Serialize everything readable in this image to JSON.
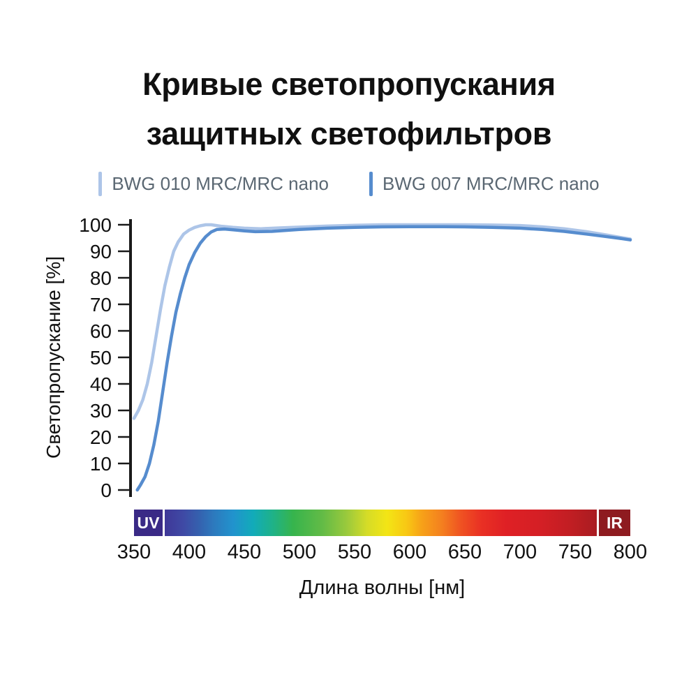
{
  "title_lines": [
    "Кривые светопропускания",
    "защитных светофильтров"
  ],
  "legend": {
    "items": [
      {
        "label": "BWG 010 MRC/MRC nano",
        "color": "#adc5e8"
      },
      {
        "label": "BWG 007 MRC/MRC nano",
        "color": "#568cce"
      }
    ]
  },
  "chart_data": {
    "type": "line",
    "title": "Кривые светопропускания защитных светофильтров",
    "xlabel": "Длина волны [нм]",
    "ylabel": "Светопропускание [%]",
    "xlim": [
      350,
      800
    ],
    "ylim": [
      0,
      100
    ],
    "xticks": [
      350,
      400,
      450,
      500,
      550,
      600,
      650,
      700,
      750,
      800
    ],
    "yticks": [
      0,
      10,
      20,
      30,
      40,
      50,
      60,
      70,
      80,
      90,
      100
    ],
    "grid": false,
    "legend_position": "top",
    "series": [
      {
        "id": "bwg-010",
        "name": "BWG 010 MRC/MRC nano",
        "color": "#adc5e8",
        "points": [
          [
            350,
            27
          ],
          [
            354,
            30
          ],
          [
            358,
            34
          ],
          [
            362,
            40
          ],
          [
            366,
            48
          ],
          [
            370,
            58
          ],
          [
            374,
            68
          ],
          [
            378,
            77
          ],
          [
            382,
            84
          ],
          [
            386,
            90
          ],
          [
            390,
            93.5
          ],
          [
            395,
            96.5
          ],
          [
            400,
            98
          ],
          [
            405,
            99
          ],
          [
            410,
            99.6
          ],
          [
            415,
            100
          ],
          [
            420,
            100
          ],
          [
            430,
            99.4
          ],
          [
            440,
            99
          ],
          [
            450,
            98.7
          ],
          [
            465,
            98.5
          ],
          [
            480,
            98.8
          ],
          [
            500,
            99.1
          ],
          [
            525,
            99.5
          ],
          [
            550,
            99.8
          ],
          [
            575,
            100
          ],
          [
            600,
            100
          ],
          [
            625,
            100
          ],
          [
            650,
            100
          ],
          [
            675,
            99.9
          ],
          [
            700,
            99.7
          ],
          [
            720,
            99.2
          ],
          [
            740,
            98.5
          ],
          [
            760,
            97.4
          ],
          [
            775,
            96.4
          ],
          [
            790,
            95.3
          ],
          [
            800,
            94.6
          ]
        ]
      },
      {
        "id": "bwg-007",
        "name": "BWG 007 MRC/MRC nano",
        "color": "#568cce",
        "points": [
          [
            353,
            0
          ],
          [
            356,
            2
          ],
          [
            360,
            5
          ],
          [
            364,
            10
          ],
          [
            368,
            17
          ],
          [
            372,
            26
          ],
          [
            376,
            37
          ],
          [
            380,
            48
          ],
          [
            384,
            58
          ],
          [
            388,
            67
          ],
          [
            392,
            74
          ],
          [
            396,
            80
          ],
          [
            400,
            85
          ],
          [
            405,
            89.5
          ],
          [
            410,
            93
          ],
          [
            415,
            95.5
          ],
          [
            420,
            97.3
          ],
          [
            425,
            98.2
          ],
          [
            432,
            98.4
          ],
          [
            440,
            98.1
          ],
          [
            450,
            97.7
          ],
          [
            460,
            97.4
          ],
          [
            475,
            97.5
          ],
          [
            500,
            98.2
          ],
          [
            525,
            98.7
          ],
          [
            550,
            99
          ],
          [
            575,
            99.2
          ],
          [
            600,
            99.3
          ],
          [
            625,
            99.3
          ],
          [
            650,
            99.2
          ],
          [
            675,
            99
          ],
          [
            700,
            98.7
          ],
          [
            720,
            98.2
          ],
          [
            740,
            97.5
          ],
          [
            760,
            96.5
          ],
          [
            775,
            95.7
          ],
          [
            790,
            94.9
          ],
          [
            800,
            94.3
          ]
        ]
      }
    ],
    "spectrum_bar": {
      "uv_label": "UV",
      "ir_label": "IR",
      "uv_color": "#3a2a86",
      "ir_color": "#8e1b20",
      "gradient": [
        {
          "offset": 0.0,
          "color": "#3a2a86"
        },
        {
          "offset": 0.06,
          "color": "#3f3697"
        },
        {
          "offset": 0.1,
          "color": "#3f4aa5"
        },
        {
          "offset": 0.13,
          "color": "#3560ae"
        },
        {
          "offset": 0.16,
          "color": "#2d79bd"
        },
        {
          "offset": 0.2,
          "color": "#2193cd"
        },
        {
          "offset": 0.24,
          "color": "#12abb9"
        },
        {
          "offset": 0.28,
          "color": "#1fb287"
        },
        {
          "offset": 0.32,
          "color": "#36b44d"
        },
        {
          "offset": 0.38,
          "color": "#63bb46"
        },
        {
          "offset": 0.43,
          "color": "#9cca3c"
        },
        {
          "offset": 0.47,
          "color": "#d6dc27"
        },
        {
          "offset": 0.51,
          "color": "#f3e515"
        },
        {
          "offset": 0.55,
          "color": "#f8c714"
        },
        {
          "offset": 0.58,
          "color": "#f7a118"
        },
        {
          "offset": 0.62,
          "color": "#f4801f"
        },
        {
          "offset": 0.66,
          "color": "#ef5122"
        },
        {
          "offset": 0.7,
          "color": "#e93024"
        },
        {
          "offset": 0.75,
          "color": "#df2025"
        },
        {
          "offset": 0.82,
          "color": "#d41f25"
        },
        {
          "offset": 0.88,
          "color": "#c11e23"
        },
        {
          "offset": 0.94,
          "color": "#a51c21"
        },
        {
          "offset": 1.0,
          "color": "#8e1b20"
        }
      ]
    }
  }
}
